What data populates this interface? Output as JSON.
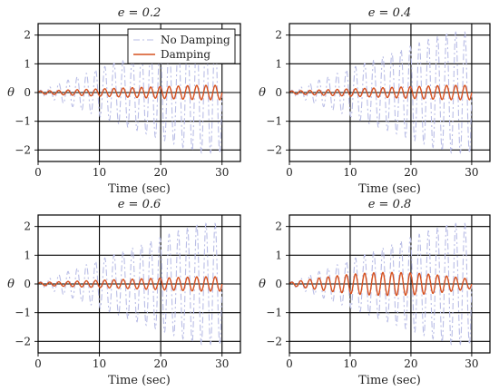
{
  "chart_data": [
    {
      "type": "line",
      "title": "e = 0.2",
      "xlabel": "Time (sec)",
      "ylabel": "θ",
      "xlim": [
        0,
        33
      ],
      "ylim": [
        -2.4,
        2.4
      ],
      "xticks": [
        0,
        10,
        20,
        30
      ],
      "yticks": [
        -2,
        -1,
        0,
        1,
        2
      ],
      "grid": true,
      "legend": {
        "placement": "top-right",
        "entries": [
          "No Damping",
          "Damping"
        ]
      },
      "series": [
        {
          "name": "No Damping",
          "x_range": [
            0,
            30
          ],
          "amplitude_start": 0.05,
          "amplitude_end": 2.1,
          "period": 1.5
        },
        {
          "name": "Damping",
          "x_range": [
            0,
            30
          ],
          "amplitude_start": 0.05,
          "amplitude_end": 0.25,
          "amplitude_peak": 0.25,
          "period": 1.5
        }
      ]
    },
    {
      "type": "line",
      "title": "e = 0.4",
      "xlabel": "Time (sec)",
      "ylabel": "θ",
      "xlim": [
        0,
        33
      ],
      "ylim": [
        -2.4,
        2.4
      ],
      "xticks": [
        0,
        10,
        20,
        30
      ],
      "yticks": [
        -2,
        -1,
        0,
        1,
        2
      ],
      "grid": true,
      "series": [
        {
          "name": "No Damping",
          "x_range": [
            0,
            30
          ],
          "amplitude_start": 0.05,
          "amplitude_end": 2.1,
          "period": 1.5
        },
        {
          "name": "Damping",
          "x_range": [
            0,
            30
          ],
          "amplitude_start": 0.05,
          "amplitude_end": 0.25,
          "amplitude_peak": 0.25,
          "period": 1.5
        }
      ]
    },
    {
      "type": "line",
      "title": "e = 0.6",
      "xlabel": "Time (sec)",
      "ylabel": "θ",
      "xlim": [
        0,
        33
      ],
      "ylim": [
        -2.4,
        2.4
      ],
      "xticks": [
        0,
        10,
        20,
        30
      ],
      "yticks": [
        -2,
        -1,
        0,
        1,
        2
      ],
      "grid": true,
      "series": [
        {
          "name": "No Damping",
          "x_range": [
            0,
            30
          ],
          "amplitude_start": 0.05,
          "amplitude_end": 2.1,
          "period": 1.5
        },
        {
          "name": "Damping",
          "x_range": [
            0,
            30
          ],
          "amplitude_start": 0.05,
          "amplitude_end": 0.25,
          "amplitude_peak": 0.25,
          "period": 1.5
        }
      ]
    },
    {
      "type": "line",
      "title": "e = 0.8",
      "xlabel": "Time (sec)",
      "ylabel": "θ",
      "xlim": [
        0,
        33
      ],
      "ylim": [
        -2.4,
        2.4
      ],
      "xticks": [
        0,
        10,
        20,
        30
      ],
      "yticks": [
        -2,
        -1,
        0,
        1,
        2
      ],
      "grid": true,
      "series": [
        {
          "name": "No Damping",
          "x_range": [
            0,
            30
          ],
          "amplitude_start": 0.05,
          "amplitude_end": 2.1,
          "period": 1.5
        },
        {
          "name": "Damping",
          "x_range": [
            0,
            30
          ],
          "amplitude_start": 0.05,
          "amplitude_end": 0.3,
          "amplitude_peak": 0.4,
          "period": 1.5
        }
      ]
    }
  ],
  "colors": {
    "no_damping": "#b9bde6",
    "damping": "#d6501e"
  }
}
